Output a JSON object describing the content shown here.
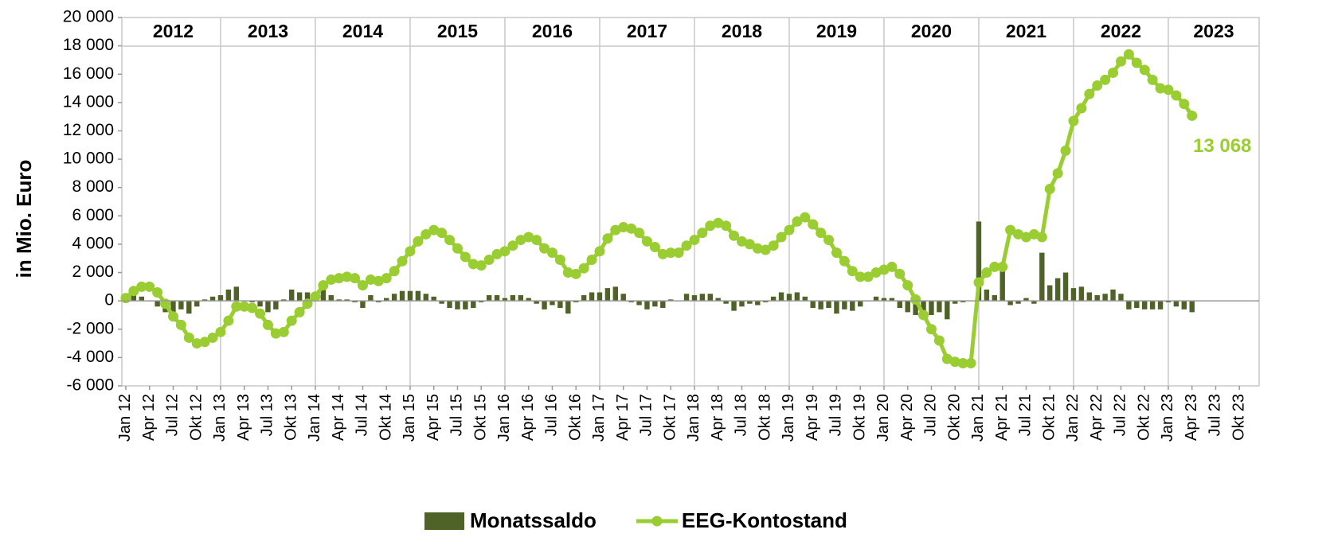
{
  "chart_data": {
    "type": "bar_line",
    "y_axis_label": "in Mio. Euro",
    "year_labels": [
      "2012",
      "2013",
      "2014",
      "2015",
      "2016",
      "2017",
      "2018",
      "2019",
      "2020",
      "2021",
      "2022",
      "2023"
    ],
    "categories": [
      "Jan 12",
      null,
      null,
      "Apr 12",
      null,
      null,
      "Jul 12",
      null,
      null,
      "Okt 12",
      null,
      null,
      "Jan 13",
      null,
      null,
      "Apr 13",
      null,
      null,
      "Jul 13",
      null,
      null,
      "Okt 13",
      null,
      null,
      "Jan 14",
      null,
      null,
      "Apr 14",
      null,
      null,
      "Jul 14",
      null,
      null,
      "Okt 14",
      null,
      null,
      "Jan 15",
      null,
      null,
      "Apr 15",
      null,
      null,
      "Jul 15",
      null,
      null,
      "Okt 15",
      null,
      null,
      "Jan 16",
      null,
      null,
      "Apr 16",
      null,
      null,
      "Jul 16",
      null,
      null,
      "Okt 16",
      null,
      null,
      "Jan 17",
      null,
      null,
      "Apr 17",
      null,
      null,
      "Jul 17",
      null,
      null,
      "Okt 17",
      null,
      null,
      "Jan 18",
      null,
      null,
      "Apr 18",
      null,
      null,
      "Jul 18",
      null,
      null,
      "Okt 18",
      null,
      null,
      "Jan 19",
      null,
      null,
      "Apr 19",
      null,
      null,
      "Jul 19",
      null,
      null,
      "Okt 19",
      null,
      null,
      "Jan 20",
      null,
      null,
      "Apr 20",
      null,
      null,
      "Jul 20",
      null,
      null,
      "Okt 20",
      null,
      null,
      "Jan 21",
      null,
      null,
      "Apr 21",
      null,
      null,
      "Jul 21",
      null,
      null,
      "Okt 21",
      null,
      null,
      "Jan 22",
      null,
      null,
      "Apr 22",
      null,
      null,
      "Jul 22",
      null,
      null,
      "Okt 22",
      null,
      null,
      "Jan 23",
      null,
      null,
      "Apr 23",
      null,
      null,
      "Jul 23",
      null,
      null,
      "Okt 23",
      null,
      null
    ],
    "series": [
      {
        "name": "Monatssaldo",
        "kind": "bar",
        "color": "#4f6228",
        "values": [
          300,
          500,
          300,
          0,
          -400,
          -800,
          -900,
          -600,
          -900,
          -400,
          100,
          300,
          400,
          800,
          1000,
          0,
          -100,
          -400,
          -800,
          -600,
          100,
          800,
          600,
          600,
          500,
          800,
          400,
          100,
          100,
          -100,
          -500,
          400,
          -100,
          200,
          500,
          700,
          700,
          700,
          500,
          300,
          -200,
          -500,
          -600,
          -600,
          -500,
          -100,
          400,
          400,
          200,
          400,
          400,
          200,
          -200,
          -600,
          -300,
          -500,
          -900,
          -100,
          400,
          600,
          600,
          900,
          1000,
          500,
          -100,
          -300,
          -600,
          -400,
          -500,
          100,
          0,
          500,
          400,
          500,
          500,
          200,
          -200,
          -700,
          -400,
          -200,
          -300,
          -100,
          300,
          600,
          500,
          600,
          300,
          -500,
          -600,
          -500,
          -900,
          -600,
          -700,
          -400,
          0,
          300,
          200,
          200,
          -500,
          -800,
          -1000,
          -1100,
          -1000,
          -800,
          -1300,
          -200,
          -100,
          0,
          5600,
          800,
          400,
          2600,
          -300,
          -200,
          200,
          -200,
          3400,
          1100,
          1600,
          2000,
          900,
          1000,
          600,
          400,
          500,
          800,
          500,
          -600,
          -500,
          -600,
          -600,
          -600,
          -100,
          -400,
          -600,
          -800,
          null,
          null,
          null,
          null,
          null,
          null,
          null,
          null
        ]
      },
      {
        "name": "EEG-Kontostand",
        "kind": "line",
        "color": "#9acd32",
        "values": [
          200,
          700,
          1000,
          1000,
          600,
          -200,
          -1100,
          -1700,
          -2600,
          -3000,
          -2900,
          -2600,
          -2200,
          -1400,
          -400,
          -400,
          -500,
          -900,
          -1700,
          -2300,
          -2200,
          -1400,
          -800,
          -200,
          300,
          1100,
          1500,
          1600,
          1700,
          1600,
          1100,
          1500,
          1400,
          1600,
          2100,
          2800,
          3500,
          4200,
          4700,
          5000,
          4800,
          4300,
          3700,
          3100,
          2600,
          2500,
          2900,
          3300,
          3500,
          3900,
          4300,
          4500,
          4300,
          3700,
          3400,
          2900,
          2000,
          1900,
          2300,
          2900,
          3500,
          4400,
          5000,
          5200,
          5100,
          4800,
          4200,
          3800,
          3300,
          3400,
          3400,
          3900,
          4300,
          4800,
          5300,
          5500,
          5300,
          4600,
          4200,
          4000,
          3700,
          3600,
          3900,
          4500,
          5000,
          5600,
          5900,
          5400,
          4800,
          4300,
          3400,
          2800,
          2100,
          1700,
          1700,
          2000,
          2200,
          2400,
          1900,
          1100,
          100,
          -1000,
          -2000,
          -2800,
          -4100,
          -4300,
          -4400,
          -4400,
          1300,
          2000,
          2400,
          2400,
          5000,
          4700,
          4500,
          4700,
          4500,
          7900,
          9000,
          10600,
          12700,
          13600,
          14600,
          15200,
          15600,
          16100,
          16900,
          17400,
          16800,
          16300,
          15600,
          15000,
          14900,
          14500,
          13900,
          13068,
          null,
          null,
          null,
          null,
          null,
          null,
          null,
          null
        ],
        "value_labels": [
          null,
          null,
          null,
          null,
          null,
          null,
          null,
          null,
          null,
          null,
          null,
          null,
          null,
          null,
          null,
          null,
          null,
          null,
          null,
          null,
          null,
          null,
          null,
          null,
          null,
          null,
          null,
          null,
          null,
          null,
          null,
          null,
          null,
          null,
          null,
          null,
          null,
          null,
          null,
          null,
          null,
          null,
          null,
          null,
          null,
          null,
          null,
          null,
          null,
          null,
          null,
          null,
          null,
          null,
          null,
          null,
          null,
          null,
          null,
          null,
          null,
          null,
          null,
          null,
          null,
          null,
          null,
          null,
          null,
          null,
          null,
          null,
          null,
          null,
          null,
          null,
          null,
          null,
          null,
          null,
          null,
          null,
          null,
          null,
          null,
          null,
          null,
          null,
          null,
          null,
          null,
          null,
          null,
          null,
          null,
          null,
          null,
          null,
          null,
          null,
          null,
          null,
          null,
          null,
          null,
          null,
          null,
          null,
          null,
          null,
          null,
          null,
          null,
          null,
          null,
          null,
          null,
          null,
          null,
          null,
          null,
          null,
          null,
          null,
          null,
          null,
          null,
          null,
          null,
          null,
          null,
          null,
          null,
          null,
          null,
          "13 068",
          null,
          null,
          null,
          null,
          null,
          null,
          null,
          null
        ]
      }
    ],
    "ylim": [
      -6000,
      20000
    ],
    "yticks": [
      {
        "value": -6000,
        "label": "-6 000"
      },
      {
        "value": -4000,
        "label": "-4 000"
      },
      {
        "value": -2000,
        "label": "-2 000"
      },
      0,
      {
        "value": 2000,
        "label": "2 000"
      },
      {
        "value": 4000,
        "label": "4 000"
      },
      {
        "value": 6000,
        "label": "6 000"
      },
      {
        "value": 8000,
        "label": "8 000"
      },
      {
        "value": 10000,
        "label": "10 000"
      },
      {
        "value": 12000,
        "label": "12 000"
      },
      {
        "value": 14000,
        "label": "14 000"
      },
      {
        "value": 16000,
        "label": "16 000"
      },
      {
        "value": 18000,
        "label": "18 000"
      },
      {
        "value": 20000,
        "label": "20 000"
      }
    ],
    "grid": false,
    "legend": "bottom"
  }
}
